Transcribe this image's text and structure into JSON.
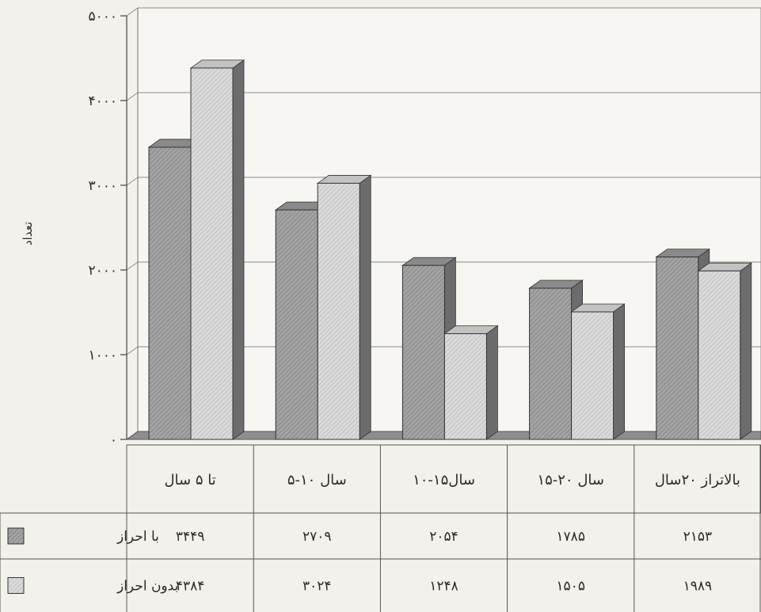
{
  "chart_data": {
    "type": "bar",
    "title": "",
    "ylabel": "تعداد",
    "xlabel": "",
    "ylim": [
      0,
      5000
    ],
    "y_ticks": [
      0,
      1000,
      2000,
      3000,
      4000,
      5000
    ],
    "y_tick_labels": [
      "۰",
      "۱۰۰۰",
      "۲۰۰۰",
      "۳۰۰۰",
      "۴۰۰۰",
      "۵۰۰۰"
    ],
    "categories": [
      "تا ۵ سال",
      "سال ۱۰-۵",
      "سال۱۵-۱۰",
      "سال ۲۰-۱۵",
      "بالاتراز ۲۰سال"
    ],
    "series": [
      {
        "name": "با احراز",
        "values": [
          3449,
          2709,
          2054,
          1785,
          2153
        ],
        "value_labels": [
          "۳۴۴۹",
          "۲۷۰۹",
          "۲۰۵۴",
          "۱۷۸۵",
          "۲۱۵۳"
        ],
        "color": "#9c9c9c"
      },
      {
        "name": "بدون احراز",
        "values": [
          4384,
          3024,
          1248,
          1505,
          1989
        ],
        "value_labels": [
          "۴۳۸۴",
          "۳۰۲۴",
          "۱۲۴۸",
          "۱۵۰۵",
          "۱۹۸۹"
        ],
        "color": "#d4d4d4"
      }
    ],
    "grid": true,
    "legend": "data-table",
    "style": "3d"
  }
}
